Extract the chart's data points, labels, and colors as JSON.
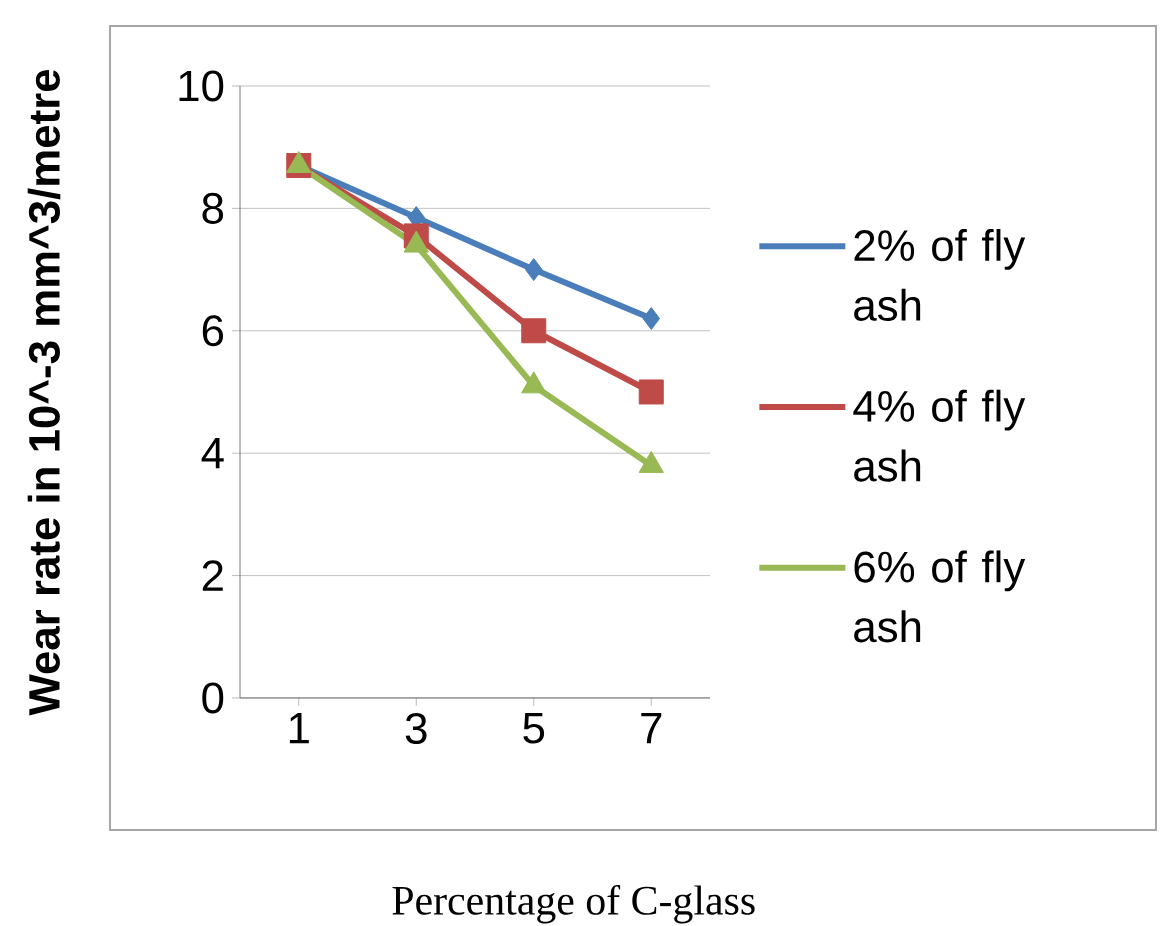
{
  "chart_data": {
    "type": "line",
    "xlabel": "Percentage of C-glass",
    "ylabel": "Wear rate  in 10^-3 mm^3/metre",
    "categories": [
      "1",
      "3",
      "5",
      "7"
    ],
    "series": [
      {
        "name": "2% of fly ash",
        "color": "#4a7ebb",
        "marker": "diamond",
        "values": [
          8.7,
          7.85,
          7.0,
          6.2
        ]
      },
      {
        "name": "4% of fly ash",
        "color": "#be4b48",
        "marker": "square",
        "values": [
          8.7,
          7.55,
          6.0,
          5.0
        ]
      },
      {
        "name": "6% of fly ash",
        "color": "#98b954",
        "marker": "triangle",
        "values": [
          8.7,
          7.4,
          5.1,
          3.8
        ]
      }
    ],
    "ylim": [
      0,
      10
    ],
    "yticks": [
      0,
      2,
      4,
      6,
      8,
      10
    ],
    "grid": "y",
    "legend": "right"
  }
}
